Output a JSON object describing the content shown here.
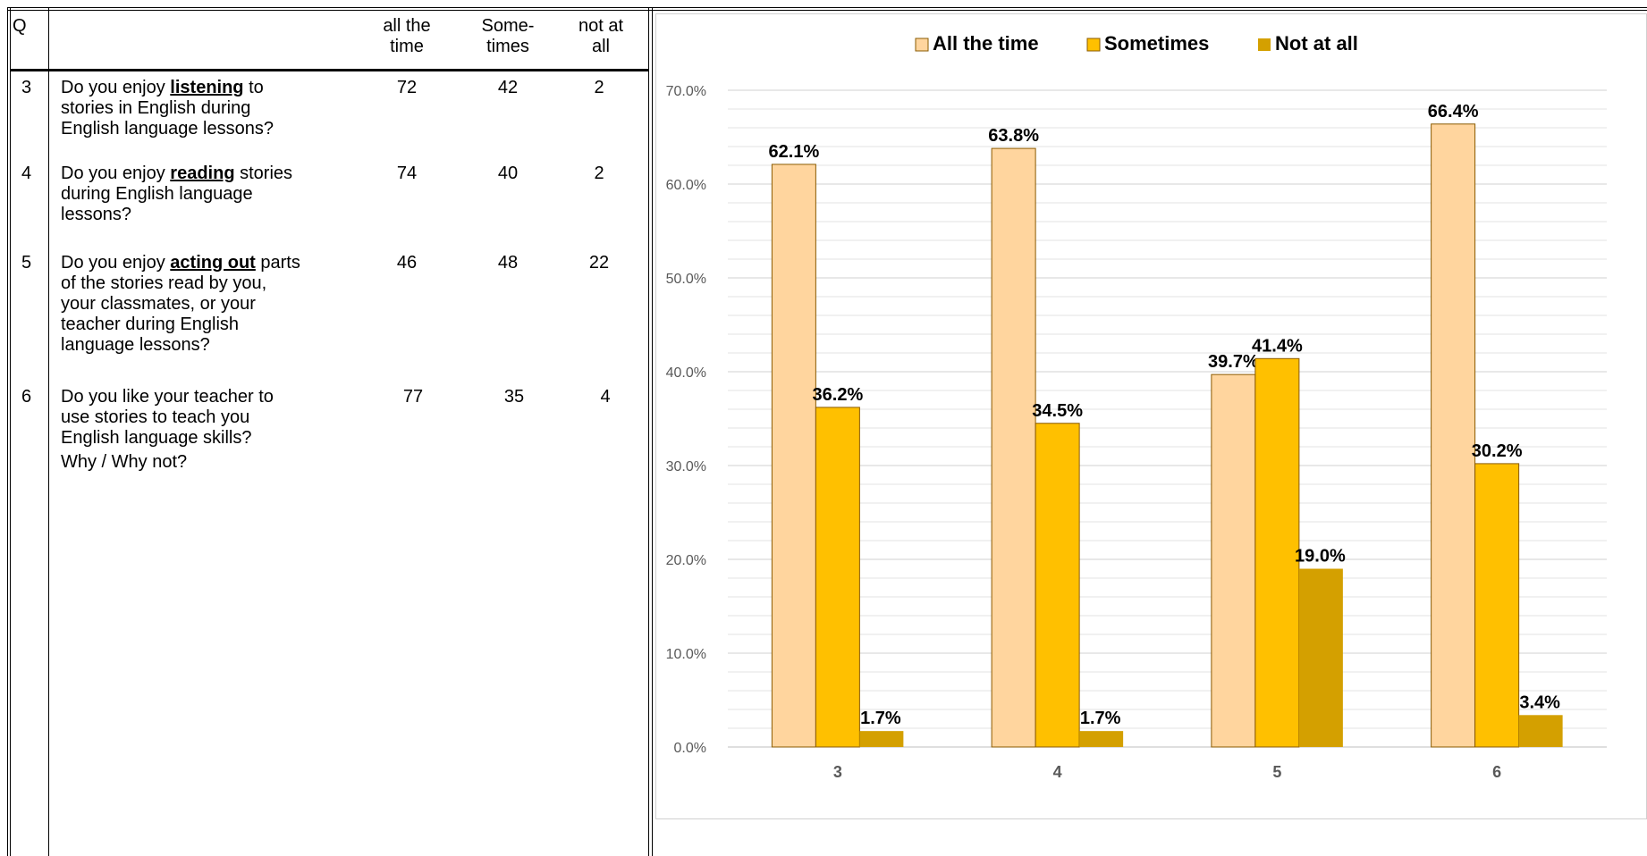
{
  "table": {
    "headers": {
      "q": "Q",
      "all_the_time": [
        "all the",
        "time"
      ],
      "sometimes": [
        "Some-",
        "times"
      ],
      "not_at_all": [
        "not at",
        "all"
      ]
    },
    "rows": [
      {
        "q": "3",
        "lines": [
          {
            "pre": "Do you enjoy ",
            "bold": "listening",
            "post": " to"
          },
          {
            "pre": "stories in English during",
            "bold": "",
            "post": ""
          },
          {
            "pre": "English language lessons?",
            "bold": "",
            "post": ""
          }
        ],
        "all_the_time": "72",
        "sometimes": "42",
        "not_at_all": "2"
      },
      {
        "q": "4",
        "lines": [
          {
            "pre": "Do you enjoy ",
            "bold": "reading",
            "post": " stories"
          },
          {
            "pre": "during English language",
            "bold": "",
            "post": ""
          },
          {
            "pre": "lessons?",
            "bold": "",
            "post": ""
          }
        ],
        "all_the_time": "74",
        "sometimes": "40",
        "not_at_all": "2"
      },
      {
        "q": "5",
        "lines": [
          {
            "pre": "Do you enjoy ",
            "bold": "acting out",
            "post": " parts"
          },
          {
            "pre": "of the stories read by you,",
            "bold": "",
            "post": ""
          },
          {
            "pre": "your classmates, or your",
            "bold": "",
            "post": ""
          },
          {
            "pre": "teacher during English",
            "bold": "",
            "post": ""
          },
          {
            "pre": "language lessons?",
            "bold": "",
            "post": ""
          }
        ],
        "all_the_time": "46",
        "sometimes": "48",
        "not_at_all": "22"
      },
      {
        "q": "6",
        "lines": [
          {
            "pre": "Do you like your teacher to",
            "bold": "",
            "post": ""
          },
          {
            "pre": "use stories to teach you",
            "bold": "",
            "post": ""
          },
          {
            "pre": "English language skills?",
            "bold": "",
            "post": ""
          },
          {
            "pre": "Why / Why not?",
            "bold": "",
            "post": ""
          }
        ],
        "all_the_time": "77",
        "sometimes": "35",
        "not_at_all": "4"
      }
    ]
  },
  "chart_data": {
    "type": "bar",
    "categories": [
      "3",
      "4",
      "5",
      "6"
    ],
    "series": [
      {
        "name": "All the time",
        "values": [
          62.1,
          63.8,
          39.7,
          66.4
        ],
        "color": "#ffd59e"
      },
      {
        "name": "Sometimes",
        "values": [
          36.2,
          34.5,
          41.4,
          30.2
        ],
        "color": "#ffc000"
      },
      {
        "name": "Not at all",
        "values": [
          1.7,
          1.7,
          19.0,
          3.4
        ],
        "color": "#d4a000"
      }
    ],
    "data_labels": [
      [
        "62.1%",
        "63.8%",
        "39.7%",
        "66.4%"
      ],
      [
        "36.2%",
        "34.5%",
        "41.4%",
        "30.2%"
      ],
      [
        "1.7%",
        "1.7%",
        "19.0%",
        "3.4%"
      ]
    ],
    "ylim": [
      0,
      70
    ],
    "yticks": [
      "0.0%",
      "10.0%",
      "20.0%",
      "30.0%",
      "40.0%",
      "50.0%",
      "60.0%",
      "70.0%"
    ],
    "legend_position": "top",
    "grid": true,
    "title": "",
    "xlabel": "",
    "ylabel": ""
  }
}
